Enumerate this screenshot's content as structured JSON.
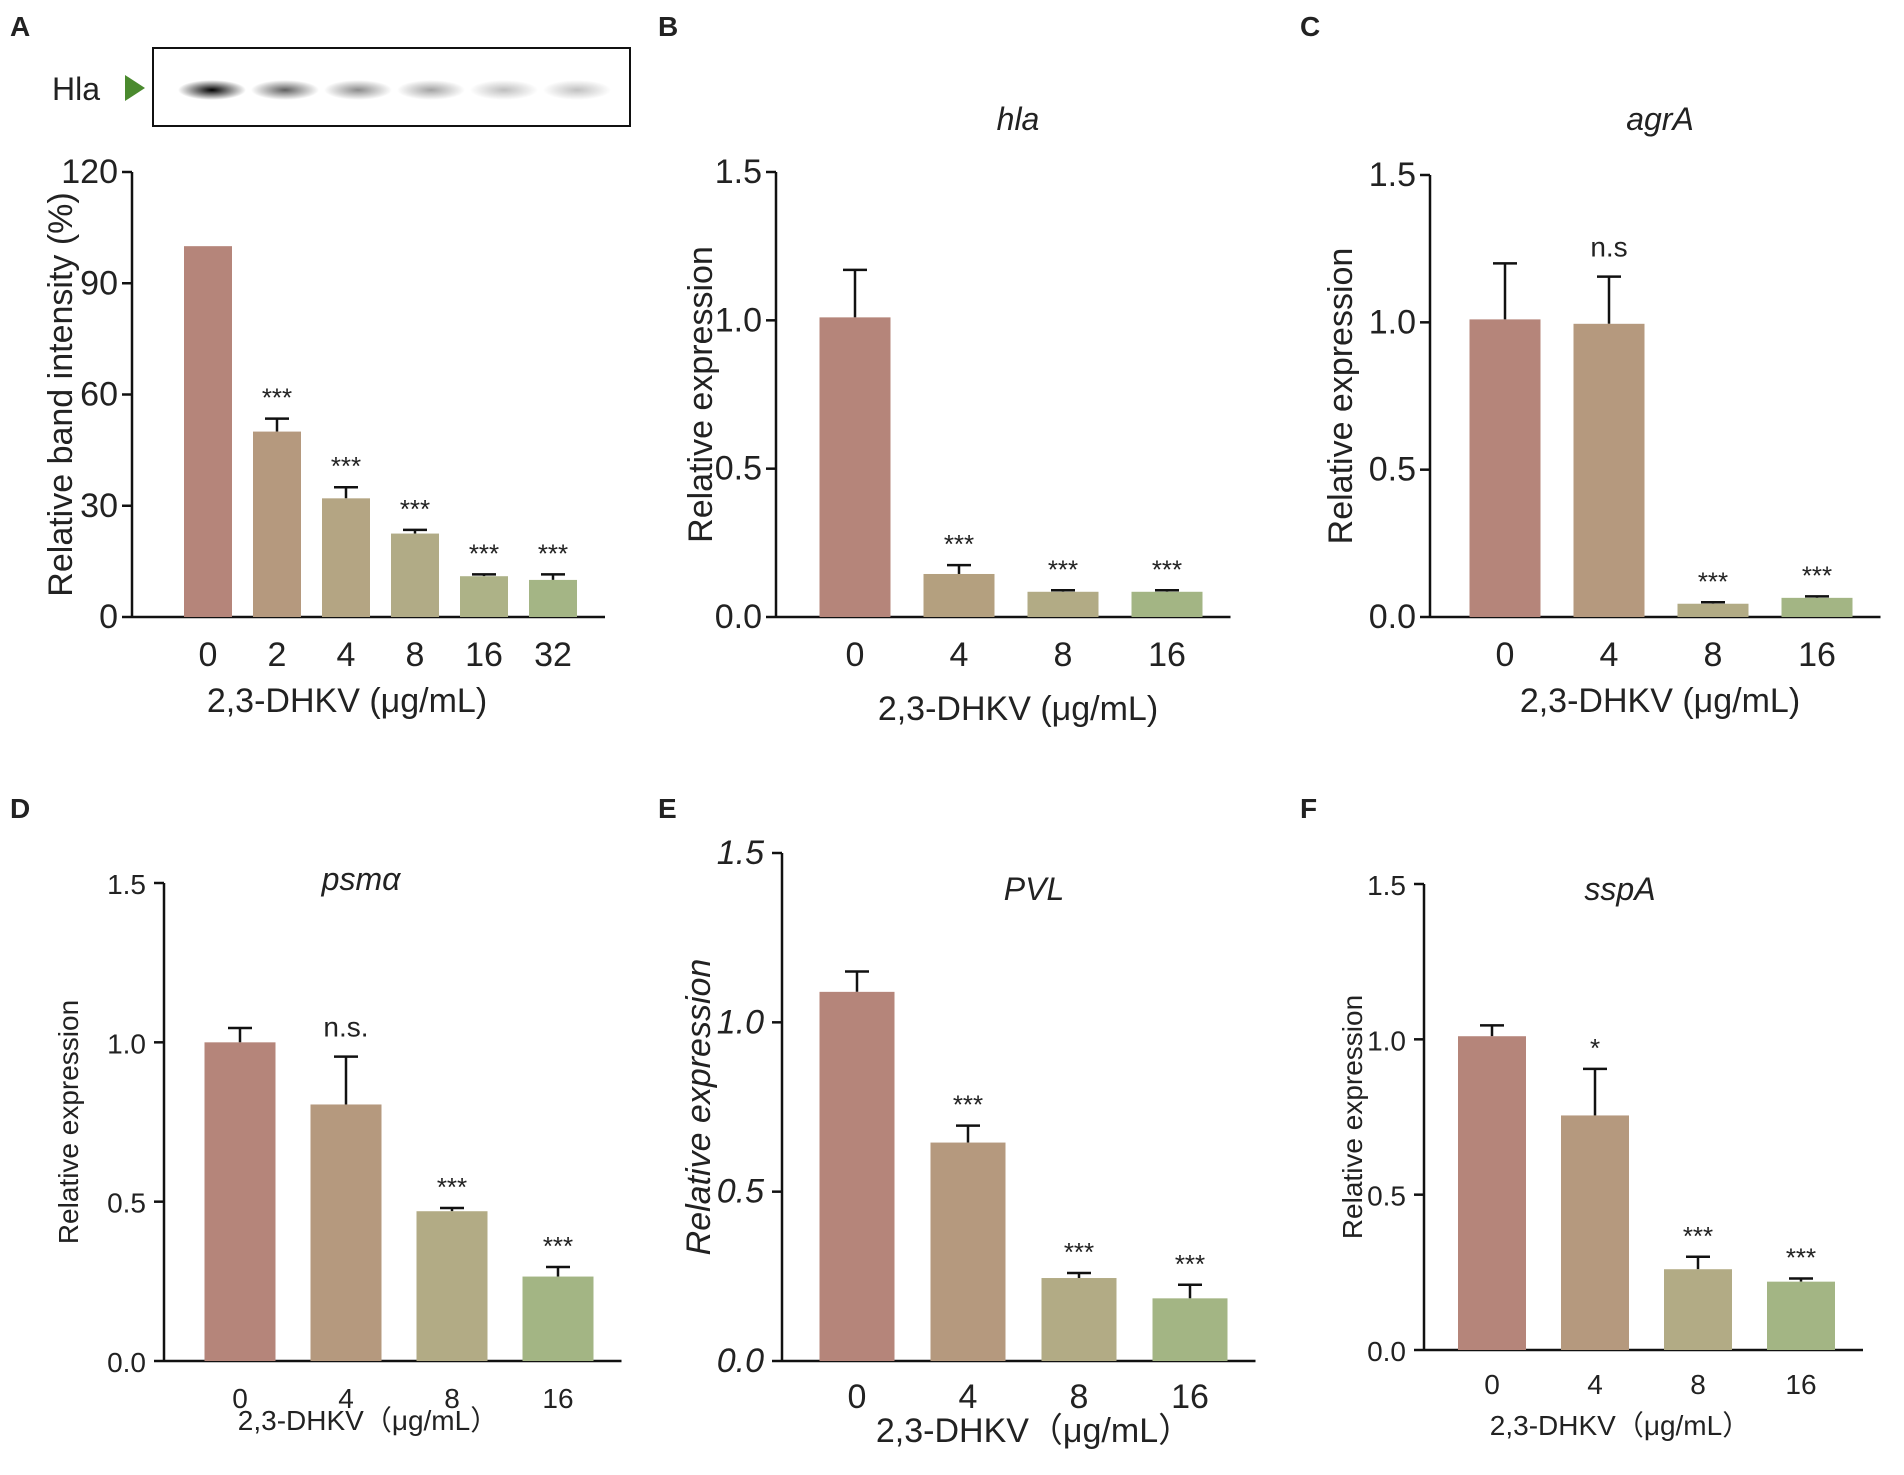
{
  "blot": {
    "label": "Hla",
    "arrow_color": "#4a8a2e",
    "band_intensities": [
      1.0,
      0.5,
      0.32,
      0.22,
      0.11,
      0.1
    ]
  },
  "chart_data": [
    {
      "panel": "A",
      "type": "bar",
      "title": "",
      "xlabel": "2,3-DHKV (μg/mL)",
      "ylabel": "Relative band intensity (%)",
      "categories": [
        "0",
        "2",
        "4",
        "8",
        "16",
        "32"
      ],
      "values": [
        100,
        50,
        32,
        22.5,
        11,
        10
      ],
      "errors": [
        0,
        3.5,
        3,
        1,
        0.5,
        1.5
      ],
      "significance": [
        "",
        "***",
        "***",
        "***",
        "***",
        "***"
      ],
      "ylim": [
        0,
        120
      ],
      "yticks": [
        "0",
        "30",
        "60",
        "90",
        "120"
      ],
      "colors": [
        "#b5857a",
        "#b5997e",
        "#b4a583",
        "#b1ab86",
        "#adb287",
        "#a4b585"
      ]
    },
    {
      "panel": "B",
      "type": "bar",
      "title": "hla",
      "xlabel": "2,3-DHKV (μg/mL)",
      "ylabel": "Relative expression",
      "categories": [
        "0",
        "4",
        "8",
        "16"
      ],
      "values": [
        1.01,
        0.145,
        0.085,
        0.085
      ],
      "errors": [
        0.16,
        0.03,
        0.005,
        0.005
      ],
      "significance": [
        "",
        "***",
        "***",
        "***"
      ],
      "ylim": [
        0,
        1.5
      ],
      "yticks": [
        "0.0",
        "0.5",
        "1.0",
        "1.5"
      ],
      "colors": [
        "#b5857a",
        "#b4a07f",
        "#b2ab85",
        "#a3b584"
      ]
    },
    {
      "panel": "C",
      "type": "bar",
      "title": "agrA",
      "xlabel": "2,3-DHKV (μg/mL)",
      "ylabel": "Relative expression",
      "categories": [
        "0",
        "4",
        "8",
        "16"
      ],
      "values": [
        1.01,
        0.995,
        0.045,
        0.065
      ],
      "errors": [
        0.19,
        0.16,
        0.005,
        0.005
      ],
      "significance": [
        "",
        "n.s",
        "***",
        "***"
      ],
      "ylim": [
        0,
        1.5
      ],
      "yticks": [
        "0.0",
        "0.5",
        "1.0",
        "1.5"
      ],
      "colors": [
        "#b5857a",
        "#b5997e",
        "#b2ab85",
        "#a3b584"
      ]
    },
    {
      "panel": "D",
      "type": "bar",
      "title": "psmα",
      "xlabel": "2,3-DHKV（μg/mL）",
      "ylabel": "Relative expression",
      "categories": [
        "0",
        "4",
        "8",
        "16"
      ],
      "values": [
        1.0,
        0.805,
        0.47,
        0.265
      ],
      "errors": [
        0.045,
        0.15,
        0.01,
        0.03
      ],
      "significance": [
        "",
        "n.s.",
        "***",
        "***"
      ],
      "ylim": [
        0,
        1.5
      ],
      "yticks": [
        "0.0",
        "0.5",
        "1.0",
        "1.5"
      ],
      "colors": [
        "#b5857a",
        "#b5997e",
        "#b2ab85",
        "#a3b584"
      ]
    },
    {
      "panel": "E",
      "type": "bar",
      "title": "PVL",
      "xlabel": "2,3-DHKV（μg/mL）",
      "ylabel": "Relative expression",
      "categories": [
        "0",
        "4",
        "8",
        "16"
      ],
      "values": [
        1.09,
        0.645,
        0.245,
        0.185
      ],
      "errors": [
        0.06,
        0.05,
        0.015,
        0.04
      ],
      "significance": [
        "",
        "***",
        "***",
        "***"
      ],
      "ylim": [
        0,
        1.5
      ],
      "yticks": [
        "0.0",
        "0.5",
        "1.0",
        "1.5"
      ],
      "ytick_style": "italic",
      "ylabel_style": "italic",
      "colors": [
        "#b5857a",
        "#b5997e",
        "#b2ab85",
        "#a3b584"
      ]
    },
    {
      "panel": "F",
      "type": "bar",
      "title": "sspA",
      "xlabel": "2,3-DHKV（μg/mL）",
      "ylabel": "Relative   expression",
      "categories": [
        "0",
        "4",
        "8",
        "16"
      ],
      "values": [
        1.01,
        0.755,
        0.26,
        0.22
      ],
      "errors": [
        0.035,
        0.15,
        0.04,
        0.01
      ],
      "significance": [
        "",
        "*",
        "***",
        "***"
      ],
      "ylim": [
        0,
        1.5
      ],
      "yticks": [
        "0.0",
        "0.5",
        "1.0",
        "1.5"
      ],
      "colors": [
        "#b5857a",
        "#b5997e",
        "#b2ab85",
        "#a3b584"
      ]
    }
  ]
}
